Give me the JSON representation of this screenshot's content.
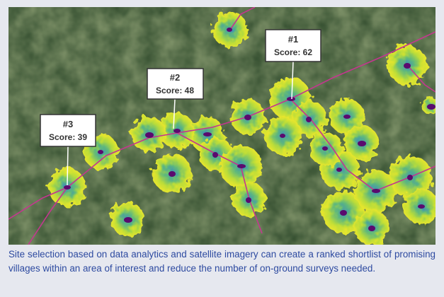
{
  "tags": [
    {
      "rank": "#1",
      "score": "Score: 62"
    },
    {
      "rank": "#2",
      "score": "Score: 48"
    },
    {
      "rank": "#3",
      "score": "Score: 39"
    }
  ],
  "caption": "Site selection based on data analytics and satellite imagery can create a ranked shortlist of promising villages within an area of interest and reduce the number of on-ground surveys needed."
}
